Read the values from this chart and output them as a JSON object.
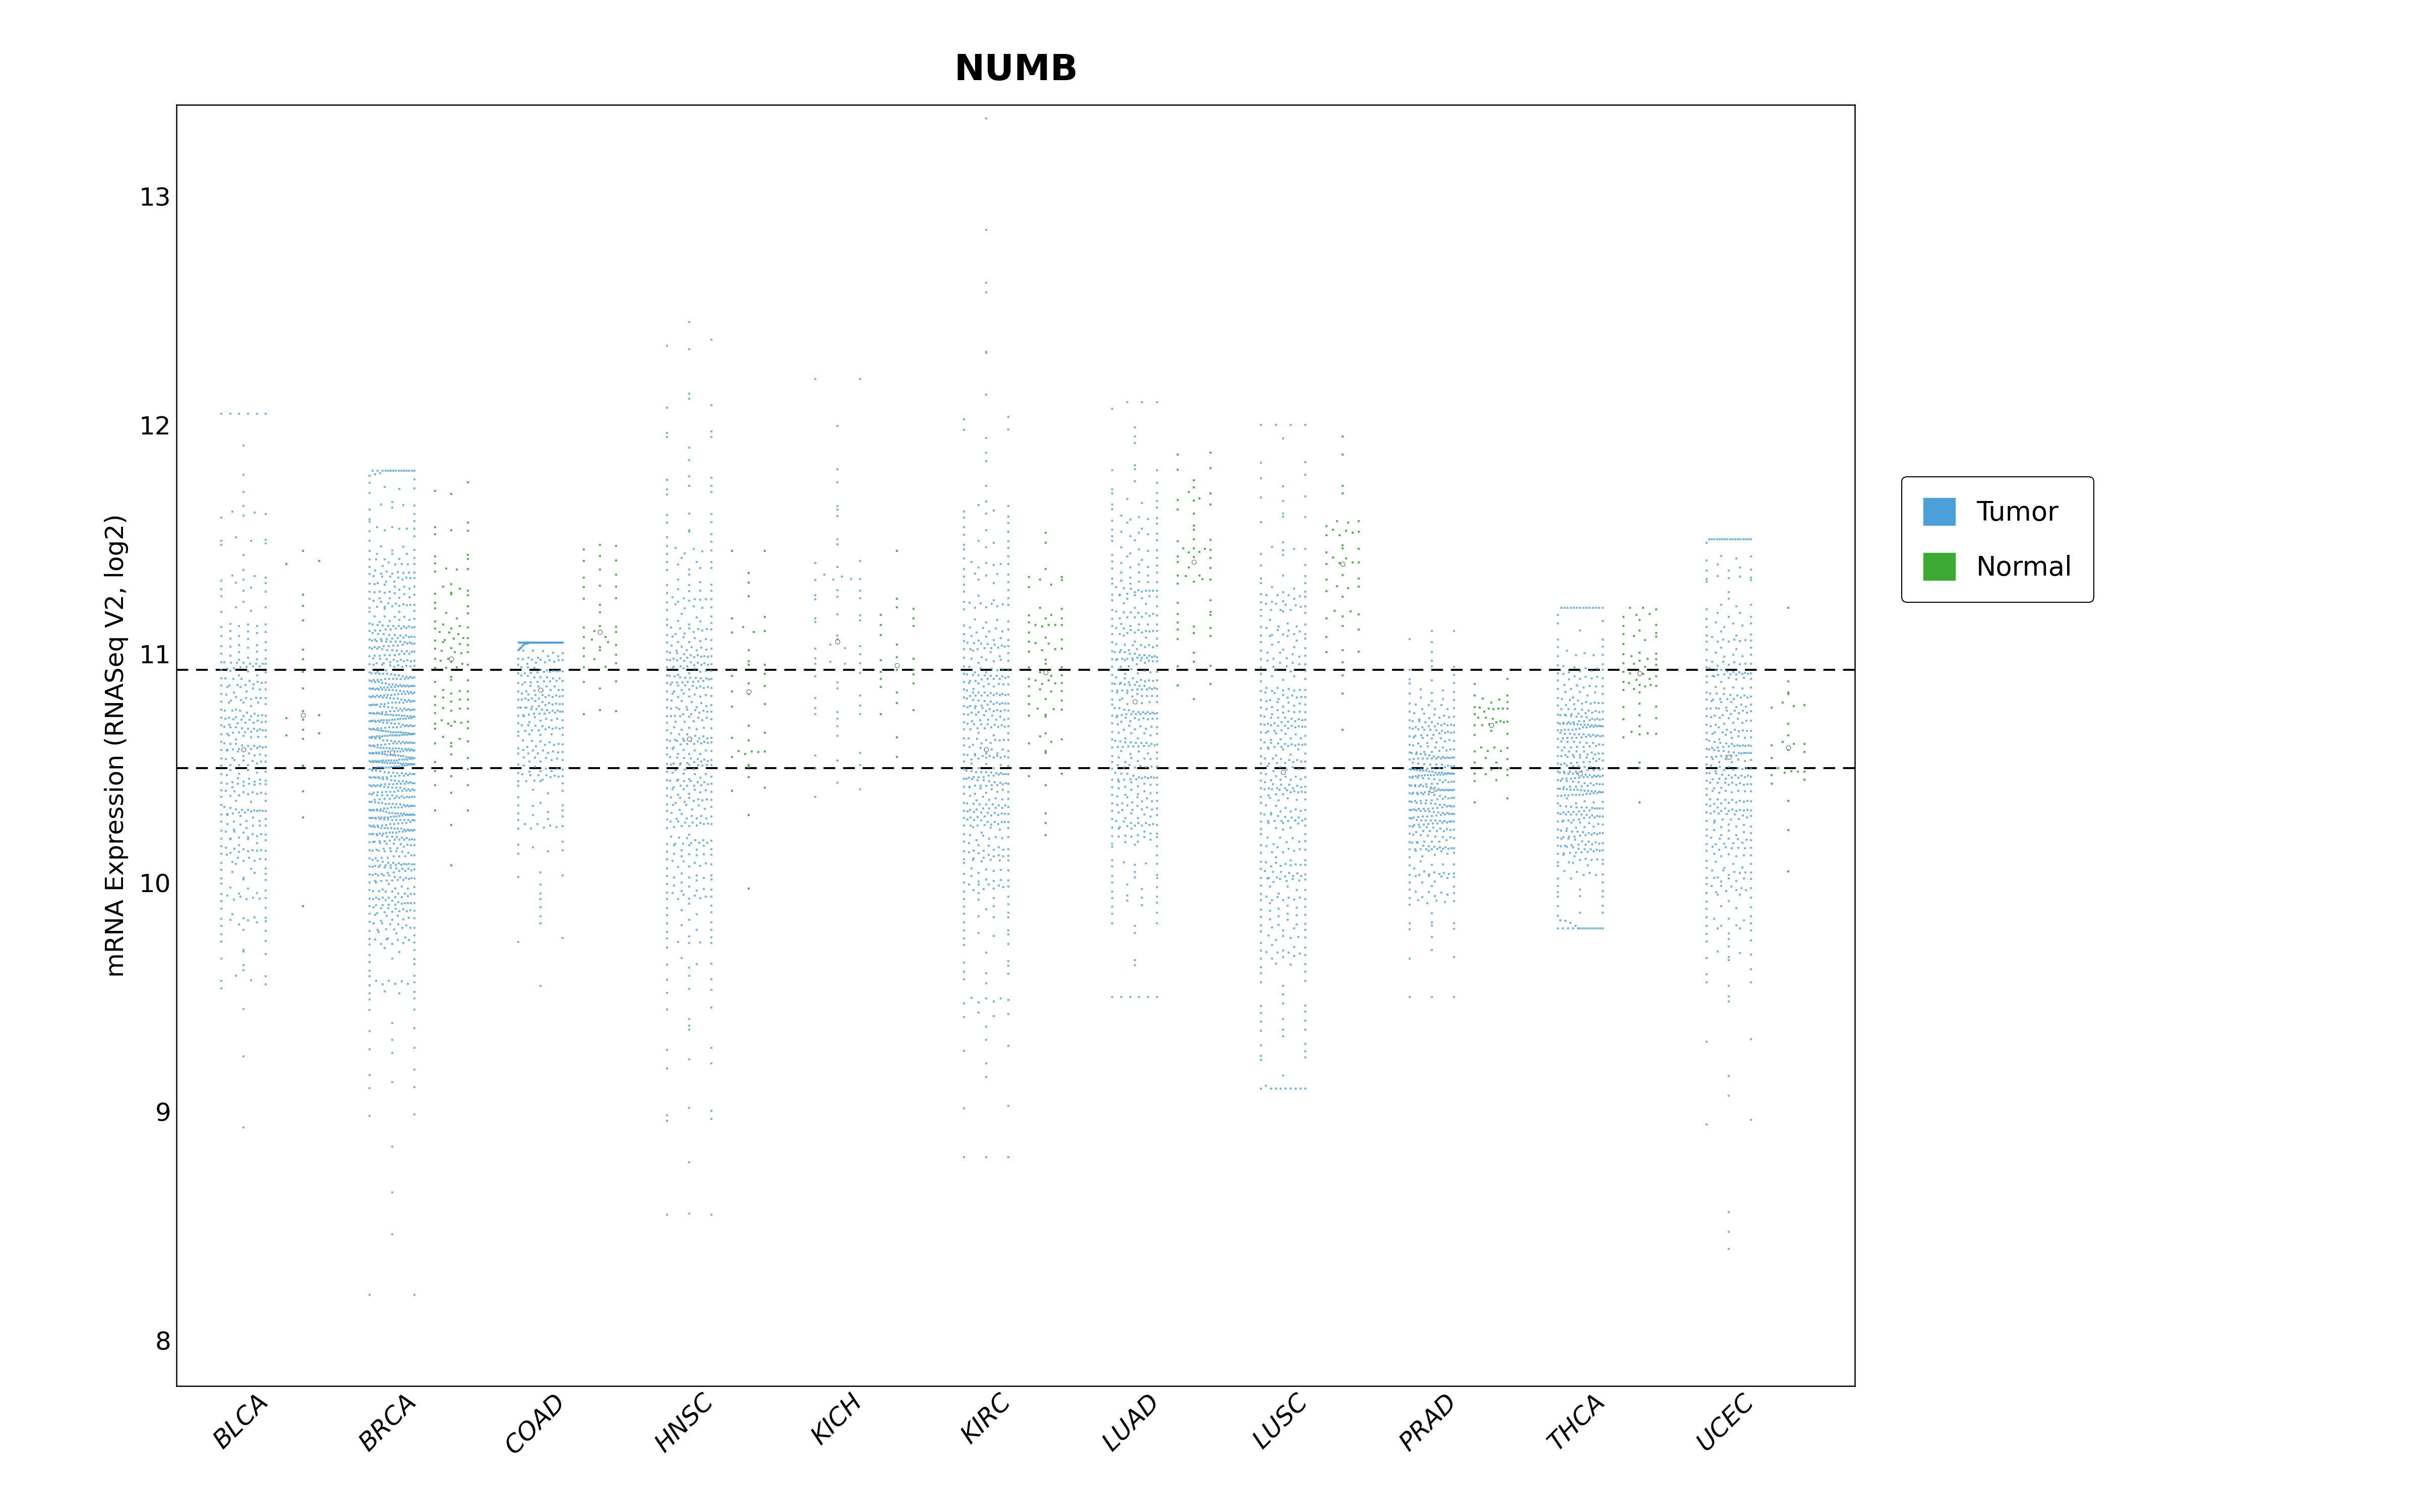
{
  "title": "NUMB",
  "ylabel": "mRNA Expression (RNASeq V2, log2)",
  "categories": [
    "BLCA",
    "BRCA",
    "COAD",
    "HNSC",
    "KICH",
    "KIRC",
    "LUAD",
    "LUSC",
    "PRAD",
    "THCA",
    "UCEC"
  ],
  "tumor_color": "#4d9fda",
  "normal_color": "#3aaa35",
  "ylim": [
    7.8,
    13.4
  ],
  "yticks": [
    8,
    9,
    10,
    11,
    12,
    13
  ],
  "hline1": 10.93,
  "hline2": 10.5,
  "tumor_params": {
    "BLCA": {
      "mean": 10.55,
      "std": 0.5,
      "n": 380,
      "min": 8.75,
      "max": 12.05
    },
    "BRCA": {
      "mean": 10.55,
      "std": 0.48,
      "n": 1000,
      "min": 8.2,
      "max": 11.8
    },
    "COAD": {
      "mean": 10.85,
      "std": 0.38,
      "n": 350,
      "min": 9.55,
      "max": 11.05
    },
    "HNSC": {
      "mean": 10.62,
      "std": 0.55,
      "n": 480,
      "min": 8.55,
      "max": 12.45
    },
    "KICH": {
      "mean": 11.05,
      "std": 0.4,
      "n": 65,
      "min": 10.05,
      "max": 12.2
    },
    "KIRC": {
      "mean": 10.58,
      "std": 0.52,
      "n": 480,
      "min": 8.8,
      "max": 13.35
    },
    "LUAD": {
      "mean": 10.78,
      "std": 0.45,
      "n": 450,
      "min": 9.5,
      "max": 12.1
    },
    "LUSC": {
      "mean": 10.5,
      "std": 0.58,
      "n": 450,
      "min": 9.1,
      "max": 12.0
    },
    "PRAD": {
      "mean": 10.42,
      "std": 0.25,
      "n": 390,
      "min": 9.5,
      "max": 11.1
    },
    "THCA": {
      "mean": 10.48,
      "std": 0.32,
      "n": 430,
      "min": 9.8,
      "max": 11.2
    },
    "UCEC": {
      "mean": 10.56,
      "std": 0.48,
      "n": 430,
      "min": 8.4,
      "max": 11.5
    }
  },
  "normal_params": {
    "BLCA": {
      "mean": 10.88,
      "std": 0.28,
      "n": 22,
      "min": 9.3,
      "max": 11.45
    },
    "BRCA": {
      "mean": 10.88,
      "std": 0.32,
      "n": 110,
      "min": 9.35,
      "max": 11.75
    },
    "COAD": {
      "mean": 11.12,
      "std": 0.22,
      "n": 42,
      "min": 10.45,
      "max": 11.65
    },
    "HNSC": {
      "mean": 10.85,
      "std": 0.3,
      "n": 42,
      "min": 9.9,
      "max": 11.45
    },
    "KICH": {
      "mean": 10.98,
      "std": 0.18,
      "n": 25,
      "min": 10.55,
      "max": 11.45
    },
    "KIRC": {
      "mean": 11.0,
      "std": 0.28,
      "n": 72,
      "min": 10.0,
      "max": 11.9
    },
    "LUAD": {
      "mean": 11.35,
      "std": 0.22,
      "n": 58,
      "min": 10.75,
      "max": 11.88
    },
    "LUSC": {
      "mean": 11.35,
      "std": 0.24,
      "n": 48,
      "min": 10.6,
      "max": 11.95
    },
    "PRAD": {
      "mean": 10.65,
      "std": 0.13,
      "n": 52,
      "min": 10.35,
      "max": 11.0
    },
    "THCA": {
      "mean": 10.9,
      "std": 0.18,
      "n": 58,
      "min": 10.35,
      "max": 11.2
    },
    "UCEC": {
      "mean": 10.62,
      "std": 0.22,
      "n": 28,
      "min": 10.05,
      "max": 11.2
    }
  },
  "fig_width": 48,
  "fig_height": 30,
  "bg_color": "#ffffff"
}
